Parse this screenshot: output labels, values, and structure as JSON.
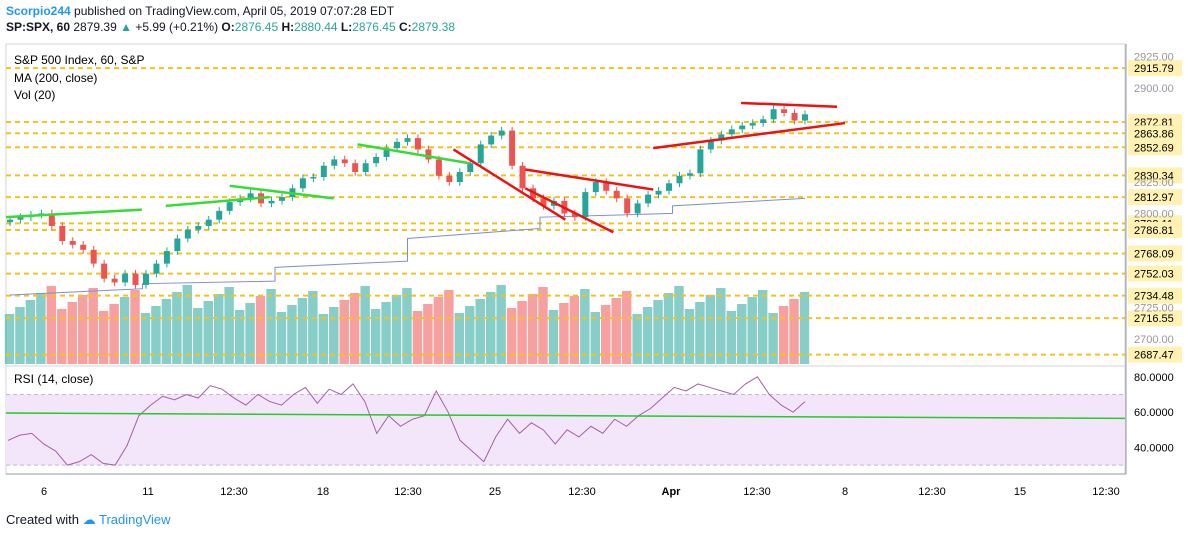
{
  "header": {
    "author": "Scorpio244",
    "published_text": "published on TradingView.com, April 05, 2019 07:07:28 EDT",
    "symbol_line": "SP:SPX, 60",
    "price": "2879.39",
    "change": "+5.99 (+0.21%)",
    "open_label": "O:",
    "open": "2876.45",
    "high_label": "H:",
    "high": "2880.44",
    "low_label": "L:",
    "low": "2876.45",
    "close_label": "C:",
    "close": "2879.38"
  },
  "legend": {
    "title": "S&P 500 Index, 60, S&P",
    "ma": "MA (200, close)",
    "vol": "Vol (20)",
    "rsi": "RSI (14, close)"
  },
  "footer": {
    "created_with": "Created with",
    "brand": "TradingView"
  },
  "colors": {
    "up": "#26a69a",
    "down": "#ef5350",
    "ma": "#7e8ed4",
    "level": "#f5c318",
    "trend_green": "#33dd33",
    "trend_red": "#ee1111",
    "rsi": "#a65fa6",
    "rsi_band": "#f3e6fb",
    "rsi_line": "#22cc22"
  },
  "chart_data": [
    {
      "type": "candlestick",
      "title": "S&P 500 Index, 60, S&P",
      "ylim": [
        2680,
        2935
      ],
      "y_ticks": [
        "2925.00",
        "2900.00",
        "2825.00",
        "2800.00",
        "2725.00",
        "2700.00"
      ],
      "x_ticks": [
        "6",
        "11",
        "12:30",
        "18",
        "12:30",
        "25",
        "12:30",
        "Apr",
        "12:30",
        "8",
        "12:30",
        "15",
        "12:30"
      ],
      "levels": [
        "2915.79",
        "2872.81",
        "2863.86",
        "2852.69",
        "2830.34",
        "2812.97",
        "2792.11",
        "2786.81",
        "2768.09",
        "2752.03",
        "2734.48",
        "2716.55",
        "2687.47"
      ],
      "close_path": [
        2795,
        2797,
        2799,
        2800,
        2790,
        2778,
        2775,
        2771,
        2760,
        2748,
        2745,
        2752,
        2743,
        2752,
        2760,
        2770,
        2780,
        2787,
        2790,
        2795,
        2802,
        2809,
        2812,
        2816,
        2808,
        2810,
        2813,
        2820,
        2828,
        2829,
        2838,
        2843,
        2840,
        2833,
        2840,
        2845,
        2852,
        2857,
        2860,
        2851,
        2843,
        2830,
        2825,
        2833,
        2840,
        2855,
        2862,
        2866,
        2838,
        2820,
        2812,
        2806,
        2810,
        2800,
        2797,
        2817,
        2825,
        2818,
        2812,
        2800,
        2808,
        2815,
        2818,
        2824,
        2830,
        2832,
        2851,
        2858,
        2863,
        2867,
        2870,
        2872,
        2875,
        2883,
        2880,
        2874,
        2879
      ],
      "ma200": [
        [
          2735,
          2740
        ],
        [
          2744,
          2746
        ],
        [
          2757,
          2762
        ],
        [
          2780,
          2788
        ],
        [
          2797,
          2800
        ],
        [
          2806,
          2812
        ]
      ],
      "trendlines": [
        {
          "color": "green",
          "from": [
            0.0,
            2797
          ],
          "to": [
            0.12,
            2803
          ]
        },
        {
          "color": "green",
          "from": [
            0.28,
            2822
          ],
          "to": [
            0.36,
            2812
          ]
        },
        {
          "color": "green",
          "from": [
            0.2,
            2806
          ],
          "to": [
            0.28,
            2813
          ]
        },
        {
          "color": "green",
          "from": [
            0.44,
            2855
          ],
          "to": [
            0.53,
            2840
          ]
        },
        {
          "color": "red",
          "from": [
            0.56,
            2851
          ],
          "to": [
            0.65,
            2795
          ]
        },
        {
          "color": "red",
          "from": [
            0.65,
            2835
          ],
          "to": [
            0.76,
            2819
          ]
        },
        {
          "color": "red",
          "from": [
            0.65,
            2820
          ],
          "to": [
            0.71,
            2785
          ]
        },
        {
          "color": "red",
          "from": [
            0.92,
            2888
          ],
          "to": [
            0.99,
            2885
          ]
        },
        {
          "color": "red",
          "from": [
            0.81,
            2852
          ],
          "to": [
            1.0,
            2872
          ]
        }
      ]
    },
    {
      "type": "line",
      "title": "RSI (14, close)",
      "ylim": [
        25,
        85
      ],
      "y_ticks": [
        "80.0000",
        "60.0000",
        "40.0000"
      ],
      "values": [
        44,
        47,
        48,
        42,
        38,
        30,
        32,
        36,
        31,
        30,
        41,
        58,
        64,
        69,
        67,
        70,
        68,
        75,
        73,
        68,
        64,
        70,
        66,
        64,
        70,
        74,
        65,
        73,
        70,
        76,
        66,
        48,
        58,
        52,
        56,
        58,
        72,
        60,
        44,
        38,
        32,
        46,
        56,
        48,
        54,
        50,
        42,
        50,
        46,
        52,
        48,
        56,
        52,
        58,
        62,
        68,
        74,
        72,
        76,
        74,
        72,
        70,
        76,
        80,
        70,
        64,
        60,
        66
      ]
    }
  ]
}
